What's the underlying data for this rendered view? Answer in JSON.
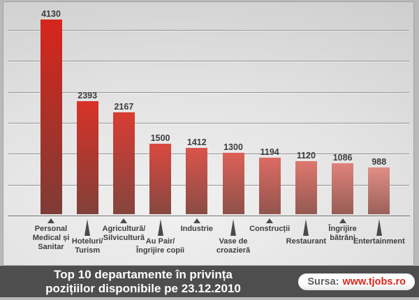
{
  "chart_data": {
    "type": "bar",
    "title": "Top 10 departamente în privința pozițiilor disponibile pe 23.12.2010",
    "categories": [
      "Personal Medical și Sanitar",
      "Hoteluri/Turism",
      "Agricultură/Silvicultură",
      "Au Pair/Îngrijire copii",
      "Industrie",
      "Vase de croazieră",
      "Construcții",
      "Restaurant",
      "Îngrijire bătrâni",
      "Entertainment"
    ],
    "values": [
      4130,
      2393,
      2167,
      1500,
      1412,
      1300,
      1194,
      1120,
      1086,
      988
    ],
    "xlabel": "",
    "ylabel": "",
    "ylim": [
      0,
      4400
    ],
    "grid": "horizontal-only",
    "legend": "none",
    "data_labels": true,
    "source": "www.tjobs.ro"
  },
  "chart": {
    "bars": [
      {
        "value": 4130,
        "lines": [
          "Personal",
          "Medical și",
          "Sanitar"
        ],
        "row": "upper"
      },
      {
        "value": 2393,
        "lines": [
          "Hoteluri/",
          "Turism"
        ],
        "row": "lower"
      },
      {
        "value": 2167,
        "lines": [
          "Agricultură/",
          "Silvicultură"
        ],
        "row": "upper"
      },
      {
        "value": 1500,
        "lines": [
          "Au Pair/",
          "Îngrijire copii"
        ],
        "row": "lower"
      },
      {
        "value": 1412,
        "lines": [
          "Industrie"
        ],
        "row": "upper"
      },
      {
        "value": 1300,
        "lines": [
          "Vase de",
          "croazieră"
        ],
        "row": "lower"
      },
      {
        "value": 1194,
        "lines": [
          "Construcții"
        ],
        "row": "upper"
      },
      {
        "value": 1120,
        "lines": [
          "Restaurant"
        ],
        "row": "lower"
      },
      {
        "value": 1086,
        "lines": [
          "Îngrijire",
          "bătrâni"
        ],
        "row": "upper"
      },
      {
        "value": 988,
        "lines": [
          "Entertainment"
        ],
        "row": "lower"
      }
    ]
  },
  "footer": {
    "title_line1": "Top 10 departamente în privința",
    "title_line2": "pozițiilor disponibile pe 23.12.2010",
    "source_label": "Sursa:",
    "source_url": "www.tjobs.ro"
  },
  "colors": {
    "bar_top_first": "#d7261c",
    "bar_top_last": "#e08e86",
    "bar_bottom_first": "#7e3c35",
    "bar_bottom_last": "#9a615a",
    "footer_background": "#4e4e4e",
    "source_url_red": "#e0241a",
    "text_dark": "#3e3e3e"
  }
}
